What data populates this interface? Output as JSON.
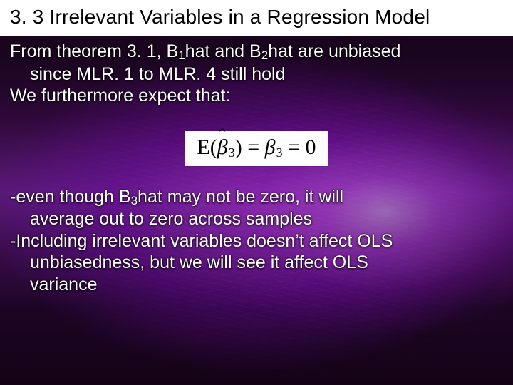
{
  "title": "3. 3 Irrelevant Variables in a Regression Model",
  "upper": {
    "line1a": "From theorem 3. 1, B",
    "sub1": "1",
    "line1b": "hat and B",
    "sub2": "2",
    "line1c": "hat are unbiased",
    "line2": "since MLR. 1 to MLR. 4 still hold",
    "line3": "We furthermore expect that:"
  },
  "formula": {
    "E": "E",
    "lpar": "(",
    "beta": "β",
    "sub": "3",
    "rpar": ")",
    "eq1": " = ",
    "beta2": "β",
    "sub2": "3",
    "eq2": " = ",
    "zero": "0"
  },
  "lower": {
    "l1a": "-even though B",
    "l1sub": "3",
    "l1b": "hat may not be zero, it will",
    "l2": "average out to zero across samples",
    "l3": "-Including irrelevant variables doesn’t affect OLS",
    "l4": "unbiasedness, but we will see it affect OLS",
    "l5": "variance"
  },
  "colors": {
    "text": "#ffffff",
    "title_bg": "#ffffff",
    "title_fg": "#000000",
    "formula_bg": "#ffffff",
    "formula_fg": "#000000"
  }
}
